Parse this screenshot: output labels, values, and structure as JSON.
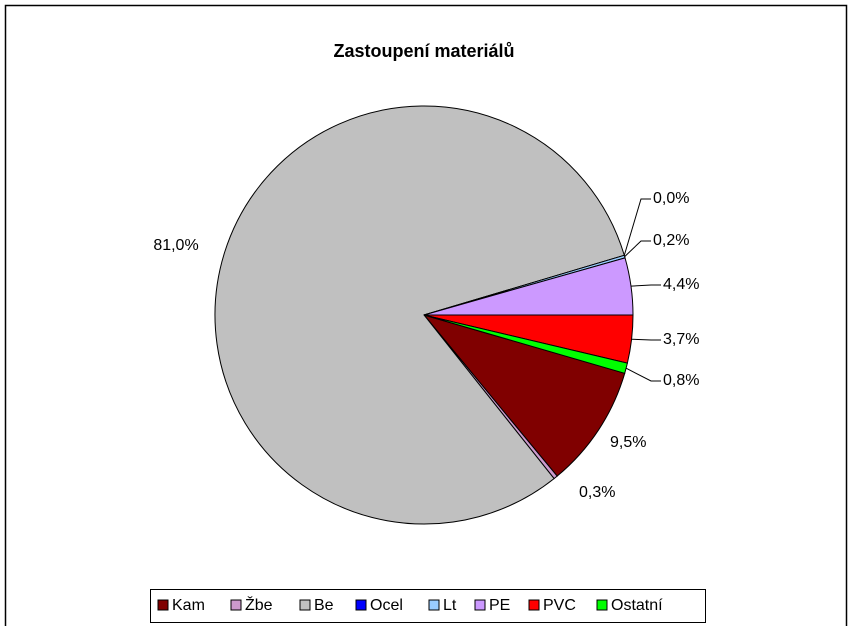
{
  "chart_data": {
    "type": "pie",
    "title": "Zastoupení materiálů",
    "categories": [
      "Kam",
      "Žbe",
      "Be",
      "Ocel",
      "Lt",
      "PE",
      "PVC",
      "Ostatní"
    ],
    "values": [
      9.5,
      0.3,
      81.0,
      0.0,
      0.2,
      4.4,
      3.7,
      0.8
    ],
    "value_labels": [
      "9,5%",
      "0,3%",
      "81,0%",
      "0,0%",
      "0,2%",
      "4,4%",
      "3,7%",
      "0,8%"
    ],
    "colors": [
      "#800000",
      "#cc99cc",
      "#c0c0c0",
      "#0000ff",
      "#99ccff",
      "#cc99ff",
      "#ff0000",
      "#00ff00"
    ],
    "legend": "bottom"
  }
}
